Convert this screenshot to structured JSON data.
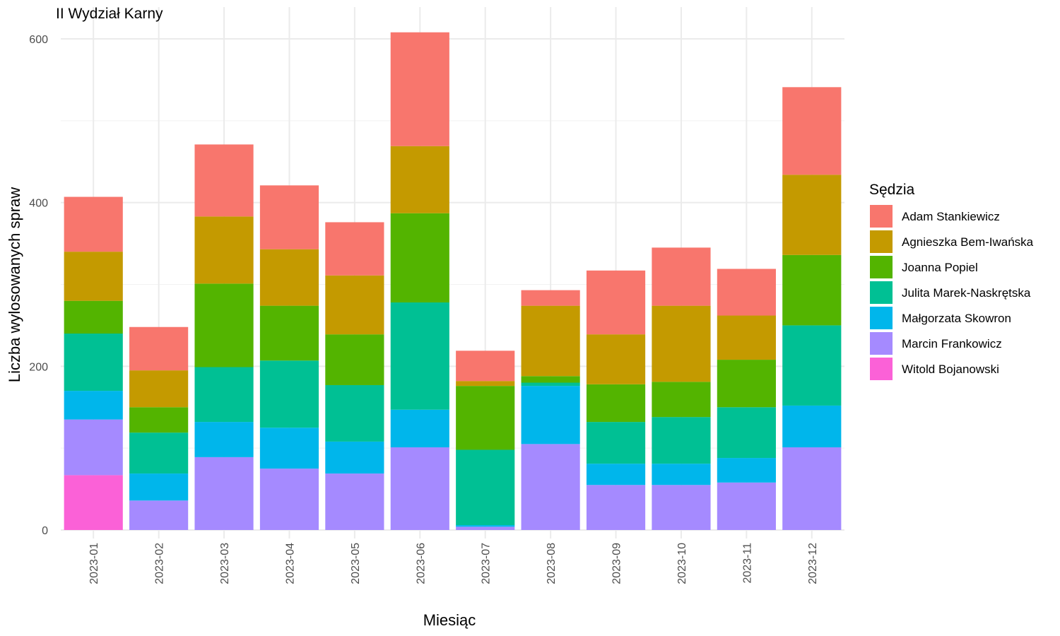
{
  "chart_data": {
    "type": "bar",
    "stacked": true,
    "title": "II Wydział Karny",
    "xlabel": "Miesiąc",
    "ylabel": "Liczba wylosowanych spraw",
    "ylim": [
      0,
      620
    ],
    "yticks": [
      0,
      200,
      400,
      600
    ],
    "grid": true,
    "legend_title": "Sędzia",
    "legend_position": "right",
    "categories": [
      "2023-01",
      "2023-02",
      "2023-03",
      "2023-04",
      "2023-05",
      "2023-06",
      "2023-07",
      "2023-08",
      "2023-09",
      "2023-10",
      "2023-11",
      "2023-12"
    ],
    "series": [
      {
        "name": "Adam Stankiewicz",
        "color": "#F8766D",
        "values": [
          67,
          53,
          88,
          78,
          65,
          139,
          37,
          19,
          78,
          71,
          57,
          107
        ]
      },
      {
        "name": "Agnieszka Bem-Iwańska",
        "color": "#C49A00",
        "values": [
          60,
          45,
          82,
          69,
          72,
          82,
          6,
          86,
          61,
          93,
          54,
          98
        ]
      },
      {
        "name": "Joanna Popiel",
        "color": "#53B400",
        "values": [
          40,
          31,
          102,
          67,
          62,
          109,
          78,
          8,
          46,
          43,
          58,
          86
        ]
      },
      {
        "name": "Julita Marek-Naskrętska",
        "color": "#00C094",
        "values": [
          70,
          50,
          67,
          82,
          69,
          131,
          92,
          4,
          51,
          57,
          62,
          98
        ]
      },
      {
        "name": "Małgorzata Skowron",
        "color": "#00B6EB",
        "values": [
          35,
          33,
          43,
          50,
          39,
          46,
          2,
          71,
          26,
          26,
          30,
          51
        ]
      },
      {
        "name": "Marcin Frankowicz",
        "color": "#A58AFF",
        "values": [
          68,
          36,
          89,
          75,
          69,
          101,
          4,
          105,
          55,
          55,
          58,
          101
        ]
      },
      {
        "name": "Witold Bojanowski",
        "color": "#FB61D7",
        "values": [
          67,
          0,
          0,
          0,
          0,
          0,
          0,
          0,
          0,
          0,
          0,
          0
        ]
      }
    ]
  }
}
